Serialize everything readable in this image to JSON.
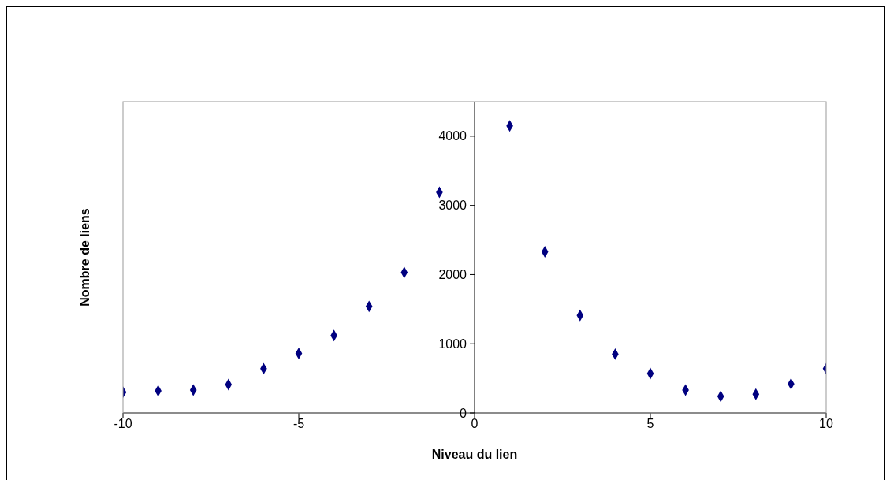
{
  "chart_data": {
    "type": "scatter",
    "xlabel": "Niveau du lien",
    "ylabel": "Nombre de liens",
    "x": [
      -10,
      -9,
      -8,
      -7,
      -6,
      -5,
      -4,
      -3,
      -2,
      -1,
      1,
      2,
      3,
      4,
      5,
      6,
      7,
      8,
      9,
      10
    ],
    "series": [
      {
        "color": "#000080",
        "values": [
          300,
          320,
          330,
          410,
          640,
          860,
          1120,
          1540,
          2030,
          3190,
          4150,
          2330,
          1410,
          850,
          570,
          330,
          240,
          270,
          420,
          640
        ]
      }
    ],
    "xlim": [
      -10,
      10
    ],
    "xticks": [
      -10,
      -5,
      0,
      5,
      10
    ],
    "ylim": [
      0,
      4500
    ],
    "yticks": [
      0,
      1000,
      2000,
      3000,
      4000
    ],
    "grid": false,
    "legend": false,
    "marker": "diamond"
  }
}
